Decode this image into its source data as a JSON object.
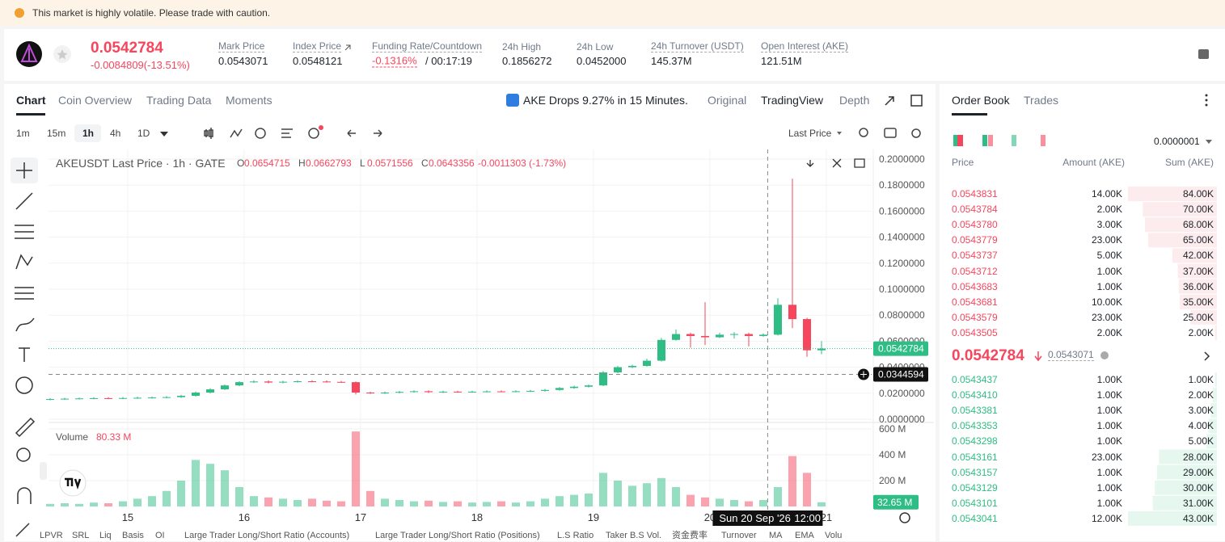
{
  "banner": "This market is highly volatile. Please trade with caution.",
  "ticker": {
    "price": "0.0542784",
    "change": "-0.0084809(-13.51%)",
    "stats": [
      {
        "label": "Mark Price",
        "value": "0.0543071"
      },
      {
        "label": "Index Price",
        "value": "0.0548121"
      },
      {
        "label": "Funding Rate/Countdown",
        "value": "-0.1316%",
        "extra": "/ 00:17:19"
      },
      {
        "label": "24h High",
        "value": "0.1856272"
      },
      {
        "label": "24h Low",
        "value": "0.0452000"
      },
      {
        "label": "24h Turnover (USDT)",
        "value": "145.37M"
      },
      {
        "label": "Open Interest (AKE)",
        "value": "121.51M"
      }
    ]
  },
  "tabs": [
    "Chart",
    "Coin Overview",
    "Trading Data",
    "Moments"
  ],
  "alert": "AKE Drops 9.27% in 15 Minutes.",
  "views": [
    "Original",
    "TradingView",
    "Depth"
  ],
  "intervals": [
    "1m",
    "15m",
    "1h",
    "4h",
    "1D"
  ],
  "price_type": "Last Price",
  "chart_data": {
    "type": "candlestick",
    "title": "AKEUSDT Last Price · 1h · GATE",
    "ohlc": [
      {
        "label": "O",
        "value": "0.0654715"
      },
      {
        "label": "H",
        "value": "0.0662793"
      },
      {
        "label": "L",
        "value": "0.0571556"
      },
      {
        "label": "C",
        "value": "0.0643356"
      }
    ],
    "change": "-0.0011303 (-1.73%)",
    "up_color": "#2ebd85",
    "down_color": "#f6465d",
    "open": [
      0.0152,
      0.0155,
      0.0158,
      0.016,
      0.0162,
      0.016,
      0.0163,
      0.0165,
      0.0167,
      0.017,
      0.018,
      0.0205,
      0.023,
      0.026,
      0.0285,
      0.029,
      0.0282,
      0.0288,
      0.0292,
      0.029,
      0.0287,
      0.0285,
      0.0205,
      0.02,
      0.0205,
      0.021,
      0.0215,
      0.0208,
      0.0212,
      0.021,
      0.0212,
      0.0214,
      0.0213,
      0.0215,
      0.0218,
      0.0225,
      0.024,
      0.025,
      0.026,
      0.036,
      0.04,
      0.041,
      0.045,
      0.061,
      0.0655,
      0.064,
      0.063,
      0.065,
      0.0655,
      0.064,
      0.065,
      0.088,
      0.077,
      0.053
    ],
    "high": [
      0.0162,
      0.0165,
      0.0167,
      0.017,
      0.017,
      0.0171,
      0.0173,
      0.0175,
      0.0178,
      0.0188,
      0.0213,
      0.0238,
      0.0268,
      0.0293,
      0.03,
      0.0298,
      0.0296,
      0.03,
      0.03,
      0.0298,
      0.0295,
      0.029,
      0.0212,
      0.0213,
      0.0218,
      0.0223,
      0.0223,
      0.022,
      0.022,
      0.022,
      0.0222,
      0.0222,
      0.0223,
      0.0226,
      0.0233,
      0.0248,
      0.0258,
      0.0268,
      0.037,
      0.041,
      0.042,
      0.0465,
      0.0625,
      0.069,
      0.0665,
      0.09,
      0.0665,
      0.067,
      0.0665,
      0.066,
      0.093,
      0.185,
      0.078,
      0.06
    ],
    "low": [
      0.0146,
      0.0149,
      0.0152,
      0.0154,
      0.0154,
      0.0154,
      0.0157,
      0.0159,
      0.0161,
      0.0164,
      0.0174,
      0.0199,
      0.0224,
      0.0254,
      0.0279,
      0.0276,
      0.0276,
      0.0282,
      0.0284,
      0.0281,
      0.0279,
      0.019,
      0.0194,
      0.0194,
      0.0199,
      0.0204,
      0.0202,
      0.0202,
      0.0204,
      0.0204,
      0.0206,
      0.0207,
      0.0207,
      0.0209,
      0.0212,
      0.0219,
      0.0234,
      0.0244,
      0.0254,
      0.0354,
      0.0394,
      0.0404,
      0.0444,
      0.0604,
      0.055,
      0.057,
      0.0624,
      0.062,
      0.056,
      0.0634,
      0.0644,
      0.07,
      0.048,
      0.05
    ],
    "close": [
      0.0155,
      0.0158,
      0.016,
      0.0162,
      0.016,
      0.0163,
      0.0165,
      0.0167,
      0.017,
      0.018,
      0.0205,
      0.023,
      0.026,
      0.0285,
      0.029,
      0.0282,
      0.0288,
      0.0292,
      0.029,
      0.0287,
      0.0285,
      0.0205,
      0.02,
      0.0205,
      0.021,
      0.0215,
      0.0208,
      0.0212,
      0.021,
      0.0212,
      0.0214,
      0.0213,
      0.0215,
      0.0218,
      0.0225,
      0.024,
      0.025,
      0.026,
      0.036,
      0.04,
      0.041,
      0.045,
      0.061,
      0.0655,
      0.064,
      0.063,
      0.065,
      0.0655,
      0.064,
      0.065,
      0.088,
      0.077,
      0.053,
      0.0543
    ],
    "volume": [
      20,
      25,
      20,
      30,
      25,
      40,
      60,
      80,
      120,
      200,
      360,
      330,
      280,
      150,
      80,
      70,
      60,
      50,
      60,
      45,
      40,
      580,
      120,
      60,
      50,
      40,
      45,
      35,
      40,
      30,
      35,
      40,
      30,
      40,
      60,
      80,
      90,
      100,
      260,
      200,
      160,
      180,
      220,
      150,
      90,
      70,
      60,
      50,
      40,
      50,
      150,
      390,
      260,
      32.65
    ],
    "xticks": [
      {
        "value": 5.33,
        "label": "15"
      },
      {
        "value": 13.33,
        "label": "16"
      },
      {
        "value": 21.33,
        "label": "17"
      },
      {
        "value": 29.33,
        "label": "18"
      },
      {
        "value": 37.33,
        "label": "19"
      },
      {
        "value": 45.33,
        "label": "20"
      },
      {
        "value": 53.33,
        "label": "21"
      }
    ],
    "ylim": [
      0,
      0.2
    ],
    "yticks": [
      {
        "value": 0,
        "label": "0.0000000"
      },
      {
        "value": 0.02,
        "label": "0.0200000"
      },
      {
        "value": 0.04,
        "label": "0.0400000"
      },
      {
        "value": 0.06,
        "label": "0.0600000"
      },
      {
        "value": 0.08,
        "label": "0.0800000"
      },
      {
        "value": 0.1,
        "label": "0.1000000"
      },
      {
        "value": 0.12,
        "label": "0.1200000"
      },
      {
        "value": 0.14,
        "label": "0.1400000"
      },
      {
        "value": 0.16,
        "label": "0.1600000"
      },
      {
        "value": 0.18,
        "label": "0.1800000"
      },
      {
        "value": 0.2,
        "label": "0.2000000"
      }
    ],
    "grid": true,
    "volume_title": "Volume",
    "volume_label": "80.33 M",
    "volume_ylim": [
      0,
      600
    ],
    "volume_yticks": [
      {
        "value": 200,
        "label": "200 M"
      },
      {
        "value": 400,
        "label": "400 M"
      },
      {
        "value": 600,
        "label": "600 M"
      }
    ],
    "last_price": 0.0542784,
    "last_volume": {
      "value": 32.65,
      "label": "32.65 M"
    },
    "crosshair_price": 0.0344594,
    "crosshair_x": 49.3,
    "crosshair_date": "Sun 20 Sep '26",
    "crosshair_time": "12:00"
  },
  "indicators": [
    "LPVR",
    "SRL",
    "Liq",
    "Basis",
    "OI",
    "Large Trader Long/Short Ratio (Accounts)",
    "Large Trader Long/Short Ratio (Positions)",
    "L.S Ratio",
    "Taker B.S Vol.",
    "资金费率",
    "Turnover",
    "MA",
    "EMA",
    "Volu"
  ],
  "order_book": {
    "tabs": [
      "Order Book",
      "Trades"
    ],
    "precision": "0.0000001",
    "columns": [
      "Price",
      "Amount (AKE)",
      "Sum (AKE)"
    ],
    "asks": {
      "prices": [
        "0.0543831",
        "0.0543784",
        "0.0543780",
        "0.0543779",
        "0.0543737",
        "0.0543712",
        "0.0543683",
        "0.0543681",
        "0.0543579",
        "0.0543505"
      ],
      "amounts": [
        "14.00K",
        "2.00K",
        "3.00K",
        "23.00K",
        "5.00K",
        "1.00K",
        "1.00K",
        "10.00K",
        "23.00K",
        "2.00K"
      ],
      "sums": [
        84,
        70,
        68,
        65,
        42,
        37,
        36,
        35,
        25,
        2
      ],
      "sum_labels": [
        "84.00K",
        "70.00K",
        "68.00K",
        "65.00K",
        "42.00K",
        "37.00K",
        "36.00K",
        "35.00K",
        "25.00K",
        "2.00K"
      ]
    },
    "mid": {
      "price": "0.0542784",
      "mark": "0.0543071"
    },
    "bids": {
      "prices": [
        "0.0543437",
        "0.0543410",
        "0.0543381",
        "0.0543353",
        "0.0543298",
        "0.0543161",
        "0.0543157",
        "0.0543129",
        "0.0543101",
        "0.0543041"
      ],
      "amounts": [
        "1.00K",
        "1.00K",
        "1.00K",
        "1.00K",
        "1.00K",
        "23.00K",
        "1.00K",
        "1.00K",
        "1.00K",
        "12.00K"
      ],
      "sums": [
        1,
        2,
        3,
        4,
        5,
        28,
        29,
        30,
        31,
        43
      ],
      "sum_labels": [
        "1.00K",
        "2.00K",
        "3.00K",
        "4.00K",
        "5.00K",
        "28.00K",
        "29.00K",
        "30.00K",
        "31.00K",
        "43.00K"
      ]
    }
  }
}
